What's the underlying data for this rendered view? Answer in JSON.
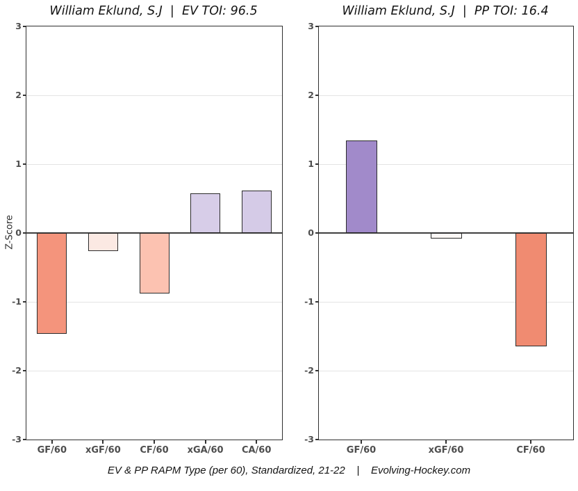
{
  "figure": {
    "caption": "EV & PP RAPM Type (per 60), Standardized, 21-22    |    Evolving-Hockey.com"
  },
  "chart_data": [
    {
      "type": "bar",
      "title": "William Eklund, S.J  |  EV TOI: 96.5",
      "xlabel": "",
      "ylabel": "Z-Score",
      "ylim": [
        -3,
        3
      ],
      "yticks": [
        3,
        2,
        1,
        0,
        -1,
        -2,
        -3
      ],
      "grid": true,
      "legend": "none",
      "categories": [
        "GF/60",
        "xGF/60",
        "CF/60",
        "xGA/60",
        "CA/60"
      ],
      "values": [
        -1.46,
        -0.26,
        -0.88,
        0.58,
        0.62
      ],
      "bar_colors": [
        "#f4947c",
        "#fbe9e3",
        "#fcc2b1",
        "#d7cde8",
        "#d5cbe7"
      ]
    },
    {
      "type": "bar",
      "title": "William Eklund, S.J  |  PP TOI: 16.4",
      "xlabel": "",
      "ylabel": "",
      "ylim": [
        -3,
        3
      ],
      "yticks": [
        3,
        2,
        1,
        0,
        -1,
        -2,
        -3
      ],
      "grid": true,
      "legend": "none",
      "categories": [
        "GF/60",
        "xGF/60",
        "CF/60"
      ],
      "values": [
        1.34,
        -0.08,
        -1.65
      ],
      "bar_colors": [
        "#a18aca",
        "#fdf8f6",
        "#f08b71"
      ]
    }
  ],
  "style": {
    "bar_outline": "#2b2b2b",
    "zero_line_color": "#3f3f3f",
    "grid_color": "#e4e4e4",
    "axis_text_color": "#4d4d4d",
    "title_color": "#141414"
  }
}
